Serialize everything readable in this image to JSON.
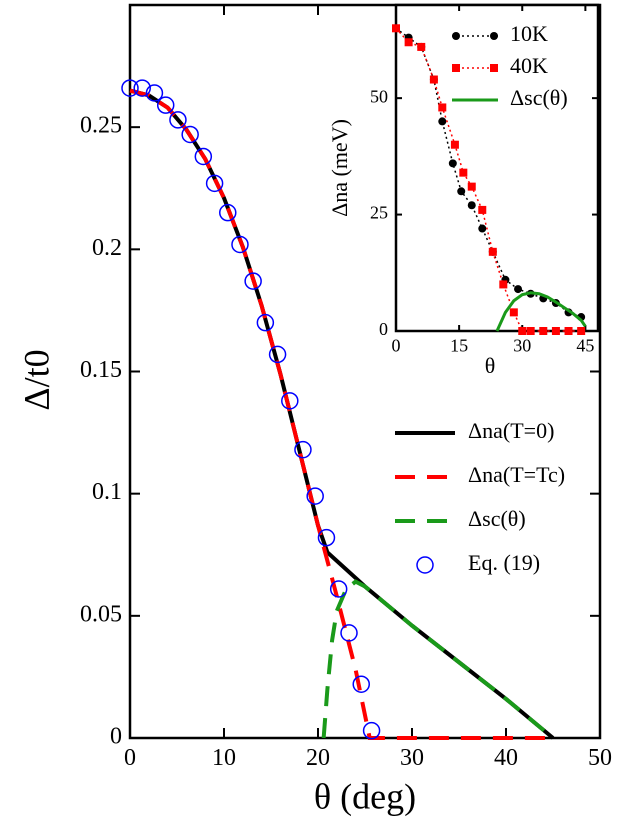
{
  "chart_data": [
    {
      "type": "line",
      "xlabel": "θ (deg)",
      "ylabel": "Δ/t0",
      "xlim": [
        0,
        50
      ],
      "ylim": [
        0,
        0.3
      ],
      "xticks": [
        0,
        10,
        20,
        30,
        40,
        50
      ],
      "yticks": [
        0,
        0.05,
        0.1,
        0.15,
        0.2,
        0.25
      ],
      "series": [
        {
          "name": "Δna(T=0)",
          "color": "#000000",
          "linestyle": "solid",
          "marker": "none",
          "x": [
            0,
            2,
            4,
            6,
            8,
            10,
            12,
            14,
            16,
            18,
            20,
            21,
            25,
            30,
            35,
            40,
            45
          ],
          "values": [
            0.265,
            0.263,
            0.258,
            0.249,
            0.237,
            0.221,
            0.201,
            0.177,
            0.149,
            0.118,
            0.087,
            0.076,
            0.062,
            0.046,
            0.031,
            0.016,
            0
          ]
        },
        {
          "name": "Δna(T=Tc)",
          "color": "#ff0000",
          "linestyle": "dashed",
          "marker": "none",
          "x": [
            0,
            2,
            4,
            6,
            8,
            10,
            12,
            14,
            16,
            18,
            20,
            22,
            24,
            25.5,
            30,
            35,
            40,
            45
          ],
          "values": [
            0.265,
            0.263,
            0.258,
            0.249,
            0.237,
            0.221,
            0.201,
            0.177,
            0.149,
            0.118,
            0.087,
            0.058,
            0.028,
            0,
            0,
            0,
            0,
            0
          ]
        },
        {
          "name": "Δsc(θ)",
          "color": "#1a9a1a",
          "linestyle": "dashed",
          "marker": "none",
          "x": [
            20.6,
            21,
            21.5,
            22,
            23,
            24,
            25,
            30,
            35,
            40,
            45
          ],
          "values": [
            0,
            0.02,
            0.04,
            0.052,
            0.061,
            0.064,
            0.062,
            0.046,
            0.031,
            0.016,
            0
          ]
        },
        {
          "name": "Eq. (19)",
          "color": "#0000ff",
          "linestyle": "none",
          "marker": "circle",
          "x": [
            0,
            1.3,
            2.6,
            3.8,
            5.1,
            6.4,
            7.8,
            9.0,
            10.4,
            11.7,
            13.1,
            14.4,
            15.7,
            17.0,
            18.4,
            19.7,
            20.9,
            22.2,
            23.3,
            24.6,
            25.7
          ],
          "values": [
            0.266,
            0.266,
            0.264,
            0.259,
            0.253,
            0.247,
            0.238,
            0.227,
            0.215,
            0.202,
            0.187,
            0.17,
            0.157,
            0.138,
            0.118,
            0.099,
            0.082,
            0.061,
            0.043,
            0.022,
            0.003
          ]
        }
      ]
    },
    {
      "type": "line",
      "xlabel": "θ",
      "ylabel": "Δna (meV)",
      "xlim": [
        0,
        48
      ],
      "ylim": [
        0,
        70
      ],
      "xticks": [
        0,
        15,
        30,
        45
      ],
      "yticks": [
        0,
        25,
        50
      ],
      "series": [
        {
          "name": "10K",
          "color": "#000000",
          "linestyle": "dotted",
          "marker": "dot",
          "x": [
            0,
            3,
            6,
            9,
            11,
            13.5,
            15.5,
            18,
            20.5,
            23,
            26,
            29,
            32,
            35,
            38,
            41,
            44
          ],
          "values": [
            65,
            63,
            61,
            54,
            45,
            36,
            30,
            27,
            22,
            17,
            11,
            9,
            8,
            7,
            6,
            4,
            3
          ]
        },
        {
          "name": "40K",
          "color": "#ff0000",
          "linestyle": "dotted",
          "marker": "square",
          "x": [
            0,
            3,
            6,
            9,
            11,
            14,
            16,
            18,
            20.5,
            23,
            25.5,
            28,
            30,
            32,
            35,
            38,
            41,
            44
          ],
          "values": [
            65,
            62,
            61,
            54,
            48,
            40,
            34,
            31,
            26,
            17,
            10,
            4,
            0,
            0,
            0,
            0,
            0,
            0
          ]
        },
        {
          "name": "Δsc(θ)",
          "color": "#1a9a1a",
          "linestyle": "solid",
          "marker": "none",
          "x": [
            24,
            26,
            28,
            30,
            32,
            34,
            36,
            38,
            40,
            42,
            44,
            45
          ],
          "values": [
            0,
            4,
            6.5,
            7.8,
            8.2,
            8,
            7.3,
            6.2,
            5,
            3.8,
            2.3,
            1
          ]
        }
      ]
    }
  ]
}
